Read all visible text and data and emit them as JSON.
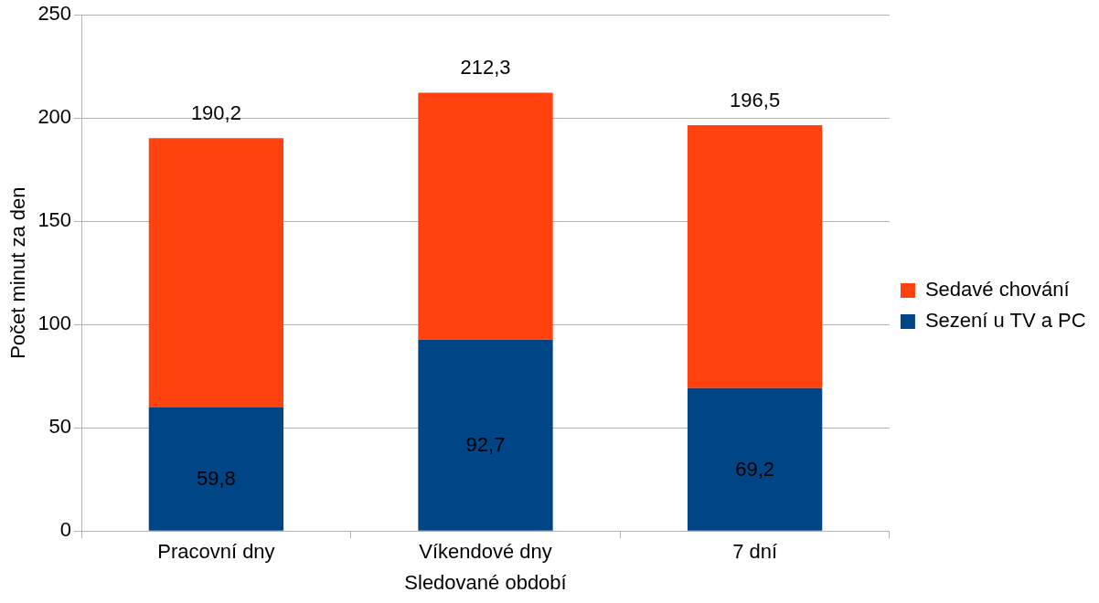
{
  "chart_data": {
    "type": "bar",
    "stacked": true,
    "xlabel": "Sledované období",
    "ylabel": "Počet minut za den",
    "categories": [
      "Pracovní dny",
      "Víkendové dny",
      "7 dní"
    ],
    "series": [
      {
        "name": "Sezení u TV a PC",
        "color": "#004586",
        "values": [
          59.8,
          92.7,
          69.2
        ],
        "value_labels": [
          "59,8",
          "92,7",
          "69,2"
        ]
      },
      {
        "name": "Sedavé chování",
        "color": "#ff420e",
        "values": [
          130.4,
          119.6,
          127.3
        ]
      }
    ],
    "totals": [
      "190,2",
      "212,3",
      "196,5"
    ],
    "ylim": [
      0,
      250
    ],
    "yticks": [
      0,
      50,
      100,
      150,
      200,
      250
    ],
    "grid": "y",
    "legend": "right"
  }
}
